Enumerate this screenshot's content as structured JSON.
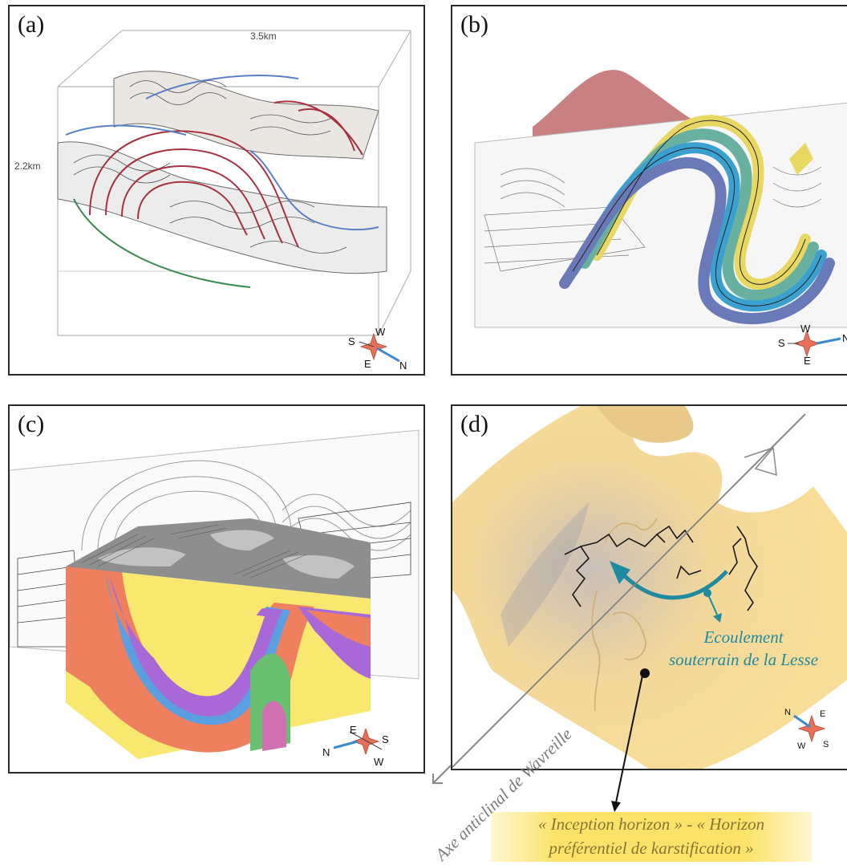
{
  "panels": {
    "a": {
      "label": "(a)",
      "scale_top": "3.5km",
      "scale_side": "2.2km",
      "compass": {
        "n1": "S",
        "n2": "W",
        "n3": "E",
        "n4": "N"
      }
    },
    "b": {
      "label": "(b)",
      "compass": {
        "n1": "S",
        "n2": "W",
        "n3": "E",
        "n4": "N"
      }
    },
    "c": {
      "label": "(c)",
      "compass": {
        "n1": "N",
        "n2": "E",
        "n3": "S",
        "n4": "W"
      }
    },
    "d": {
      "label": "(d)",
      "flow_line1": "Ecoulement",
      "flow_line2": "souterrain de la Lesse",
      "compass": {
        "n1": "N",
        "n2": "E",
        "n3": "W",
        "n4": "S"
      }
    }
  },
  "axis_label": "Axe anticlinal de Wavreille",
  "caption": {
    "line1": "« Inception horizon » - « Horizon",
    "line2": "préférentiel de karstification »"
  },
  "colors": {
    "flow": "#1f8aa0",
    "star": "#e8705a",
    "caption_bg": "#fbe36a",
    "strata": [
      "#ee8060",
      "#5aa0e0",
      "#a868d8",
      "#f8e870",
      "#68c070",
      "#d070b0"
    ]
  }
}
